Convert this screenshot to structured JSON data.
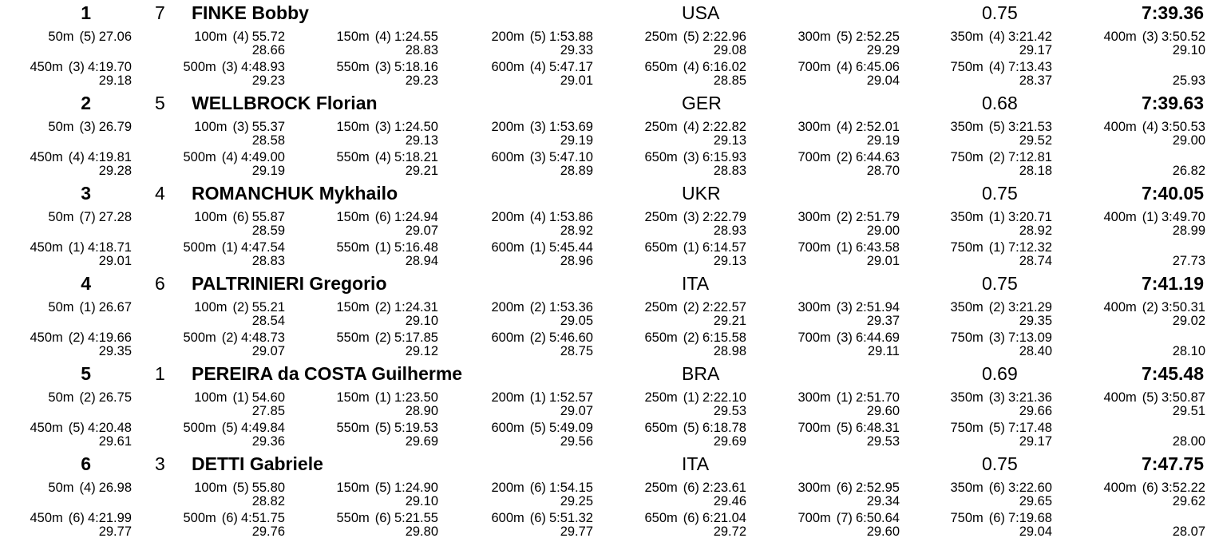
{
  "results": [
    {
      "rank": "1",
      "lane": "7",
      "name": "FINKE Bobby",
      "nat": "USA",
      "reaction": "0.75",
      "final_time": "7:39.36",
      "splits": [
        {
          "dist": "50m",
          "pos": "(5)",
          "cum": "27.06",
          "diff": ""
        },
        {
          "dist": "100m",
          "pos": "(4)",
          "cum": "55.72",
          "diff": "28.66"
        },
        {
          "dist": "150m",
          "pos": "(4)",
          "cum": "1:24.55",
          "diff": "28.83"
        },
        {
          "dist": "200m",
          "pos": "(5)",
          "cum": "1:53.88",
          "diff": "29.33"
        },
        {
          "dist": "250m",
          "pos": "(5)",
          "cum": "2:22.96",
          "diff": "29.08"
        },
        {
          "dist": "300m",
          "pos": "(5)",
          "cum": "2:52.25",
          "diff": "29.29"
        },
        {
          "dist": "350m",
          "pos": "(4)",
          "cum": "3:21.42",
          "diff": "29.17"
        },
        {
          "dist": "400m",
          "pos": "(3)",
          "cum": "3:50.52",
          "diff": "29.10"
        },
        {
          "dist": "450m",
          "pos": "(3)",
          "cum": "4:19.70",
          "diff": "29.18"
        },
        {
          "dist": "500m",
          "pos": "(3)",
          "cum": "4:48.93",
          "diff": "29.23"
        },
        {
          "dist": "550m",
          "pos": "(3)",
          "cum": "5:18.16",
          "diff": "29.23"
        },
        {
          "dist": "600m",
          "pos": "(4)",
          "cum": "5:47.17",
          "diff": "29.01"
        },
        {
          "dist": "650m",
          "pos": "(4)",
          "cum": "6:16.02",
          "diff": "28.85"
        },
        {
          "dist": "700m",
          "pos": "(4)",
          "cum": "6:45.06",
          "diff": "29.04"
        },
        {
          "dist": "750m",
          "pos": "(4)",
          "cum": "7:13.43",
          "diff": "28.37"
        },
        {
          "dist": "",
          "pos": "",
          "cum": "",
          "diff": "25.93"
        }
      ]
    },
    {
      "rank": "2",
      "lane": "5",
      "name": "WELLBROCK Florian",
      "nat": "GER",
      "reaction": "0.68",
      "final_time": "7:39.63",
      "splits": [
        {
          "dist": "50m",
          "pos": "(3)",
          "cum": "26.79",
          "diff": ""
        },
        {
          "dist": "100m",
          "pos": "(3)",
          "cum": "55.37",
          "diff": "28.58"
        },
        {
          "dist": "150m",
          "pos": "(3)",
          "cum": "1:24.50",
          "diff": "29.13"
        },
        {
          "dist": "200m",
          "pos": "(3)",
          "cum": "1:53.69",
          "diff": "29.19"
        },
        {
          "dist": "250m",
          "pos": "(4)",
          "cum": "2:22.82",
          "diff": "29.13"
        },
        {
          "dist": "300m",
          "pos": "(4)",
          "cum": "2:52.01",
          "diff": "29.19"
        },
        {
          "dist": "350m",
          "pos": "(5)",
          "cum": "3:21.53",
          "diff": "29.52"
        },
        {
          "dist": "400m",
          "pos": "(4)",
          "cum": "3:50.53",
          "diff": "29.00"
        },
        {
          "dist": "450m",
          "pos": "(4)",
          "cum": "4:19.81",
          "diff": "29.28"
        },
        {
          "dist": "500m",
          "pos": "(4)",
          "cum": "4:49.00",
          "diff": "29.19"
        },
        {
          "dist": "550m",
          "pos": "(4)",
          "cum": "5:18.21",
          "diff": "29.21"
        },
        {
          "dist": "600m",
          "pos": "(3)",
          "cum": "5:47.10",
          "diff": "28.89"
        },
        {
          "dist": "650m",
          "pos": "(3)",
          "cum": "6:15.93",
          "diff": "28.83"
        },
        {
          "dist": "700m",
          "pos": "(2)",
          "cum": "6:44.63",
          "diff": "28.70"
        },
        {
          "dist": "750m",
          "pos": "(2)",
          "cum": "7:12.81",
          "diff": "28.18"
        },
        {
          "dist": "",
          "pos": "",
          "cum": "",
          "diff": "26.82"
        }
      ]
    },
    {
      "rank": "3",
      "lane": "4",
      "name": "ROMANCHUK Mykhailo",
      "nat": "UKR",
      "reaction": "0.75",
      "final_time": "7:40.05",
      "splits": [
        {
          "dist": "50m",
          "pos": "(7)",
          "cum": "27.28",
          "diff": ""
        },
        {
          "dist": "100m",
          "pos": "(6)",
          "cum": "55.87",
          "diff": "28.59"
        },
        {
          "dist": "150m",
          "pos": "(6)",
          "cum": "1:24.94",
          "diff": "29.07"
        },
        {
          "dist": "200m",
          "pos": "(4)",
          "cum": "1:53.86",
          "diff": "28.92"
        },
        {
          "dist": "250m",
          "pos": "(3)",
          "cum": "2:22.79",
          "diff": "28.93"
        },
        {
          "dist": "300m",
          "pos": "(2)",
          "cum": "2:51.79",
          "diff": "29.00"
        },
        {
          "dist": "350m",
          "pos": "(1)",
          "cum": "3:20.71",
          "diff": "28.92"
        },
        {
          "dist": "400m",
          "pos": "(1)",
          "cum": "3:49.70",
          "diff": "28.99"
        },
        {
          "dist": "450m",
          "pos": "(1)",
          "cum": "4:18.71",
          "diff": "29.01"
        },
        {
          "dist": "500m",
          "pos": "(1)",
          "cum": "4:47.54",
          "diff": "28.83"
        },
        {
          "dist": "550m",
          "pos": "(1)",
          "cum": "5:16.48",
          "diff": "28.94"
        },
        {
          "dist": "600m",
          "pos": "(1)",
          "cum": "5:45.44",
          "diff": "28.96"
        },
        {
          "dist": "650m",
          "pos": "(1)",
          "cum": "6:14.57",
          "diff": "29.13"
        },
        {
          "dist": "700m",
          "pos": "(1)",
          "cum": "6:43.58",
          "diff": "29.01"
        },
        {
          "dist": "750m",
          "pos": "(1)",
          "cum": "7:12.32",
          "diff": "28.74"
        },
        {
          "dist": "",
          "pos": "",
          "cum": "",
          "diff": "27.73"
        }
      ]
    },
    {
      "rank": "4",
      "lane": "6",
      "name": "PALTRINIERI Gregorio",
      "nat": "ITA",
      "reaction": "0.75",
      "final_time": "7:41.19",
      "splits": [
        {
          "dist": "50m",
          "pos": "(1)",
          "cum": "26.67",
          "diff": ""
        },
        {
          "dist": "100m",
          "pos": "(2)",
          "cum": "55.21",
          "diff": "28.54"
        },
        {
          "dist": "150m",
          "pos": "(2)",
          "cum": "1:24.31",
          "diff": "29.10"
        },
        {
          "dist": "200m",
          "pos": "(2)",
          "cum": "1:53.36",
          "diff": "29.05"
        },
        {
          "dist": "250m",
          "pos": "(2)",
          "cum": "2:22.57",
          "diff": "29.21"
        },
        {
          "dist": "300m",
          "pos": "(3)",
          "cum": "2:51.94",
          "diff": "29.37"
        },
        {
          "dist": "350m",
          "pos": "(2)",
          "cum": "3:21.29",
          "diff": "29.35"
        },
        {
          "dist": "400m",
          "pos": "(2)",
          "cum": "3:50.31",
          "diff": "29.02"
        },
        {
          "dist": "450m",
          "pos": "(2)",
          "cum": "4:19.66",
          "diff": "29.35"
        },
        {
          "dist": "500m",
          "pos": "(2)",
          "cum": "4:48.73",
          "diff": "29.07"
        },
        {
          "dist": "550m",
          "pos": "(2)",
          "cum": "5:17.85",
          "diff": "29.12"
        },
        {
          "dist": "600m",
          "pos": "(2)",
          "cum": "5:46.60",
          "diff": "28.75"
        },
        {
          "dist": "650m",
          "pos": "(2)",
          "cum": "6:15.58",
          "diff": "28.98"
        },
        {
          "dist": "700m",
          "pos": "(3)",
          "cum": "6:44.69",
          "diff": "29.11"
        },
        {
          "dist": "750m",
          "pos": "(3)",
          "cum": "7:13.09",
          "diff": "28.40"
        },
        {
          "dist": "",
          "pos": "",
          "cum": "",
          "diff": "28.10"
        }
      ]
    },
    {
      "rank": "5",
      "lane": "1",
      "name": "PEREIRA da COSTA Guilherme",
      "nat": "BRA",
      "reaction": "0.69",
      "final_time": "7:45.48",
      "splits": [
        {
          "dist": "50m",
          "pos": "(2)",
          "cum": "26.75",
          "diff": ""
        },
        {
          "dist": "100m",
          "pos": "(1)",
          "cum": "54.60",
          "diff": "27.85"
        },
        {
          "dist": "150m",
          "pos": "(1)",
          "cum": "1:23.50",
          "diff": "28.90"
        },
        {
          "dist": "200m",
          "pos": "(1)",
          "cum": "1:52.57",
          "diff": "29.07"
        },
        {
          "dist": "250m",
          "pos": "(1)",
          "cum": "2:22.10",
          "diff": "29.53"
        },
        {
          "dist": "300m",
          "pos": "(1)",
          "cum": "2:51.70",
          "diff": "29.60"
        },
        {
          "dist": "350m",
          "pos": "(3)",
          "cum": "3:21.36",
          "diff": "29.66"
        },
        {
          "dist": "400m",
          "pos": "(5)",
          "cum": "3:50.87",
          "diff": "29.51"
        },
        {
          "dist": "450m",
          "pos": "(5)",
          "cum": "4:20.48",
          "diff": "29.61"
        },
        {
          "dist": "500m",
          "pos": "(5)",
          "cum": "4:49.84",
          "diff": "29.36"
        },
        {
          "dist": "550m",
          "pos": "(5)",
          "cum": "5:19.53",
          "diff": "29.69"
        },
        {
          "dist": "600m",
          "pos": "(5)",
          "cum": "5:49.09",
          "diff": "29.56"
        },
        {
          "dist": "650m",
          "pos": "(5)",
          "cum": "6:18.78",
          "diff": "29.69"
        },
        {
          "dist": "700m",
          "pos": "(5)",
          "cum": "6:48.31",
          "diff": "29.53"
        },
        {
          "dist": "750m",
          "pos": "(5)",
          "cum": "7:17.48",
          "diff": "29.17"
        },
        {
          "dist": "",
          "pos": "",
          "cum": "",
          "diff": "28.00"
        }
      ]
    },
    {
      "rank": "6",
      "lane": "3",
      "name": "DETTI Gabriele",
      "nat": "ITA",
      "reaction": "0.75",
      "final_time": "7:47.75",
      "splits": [
        {
          "dist": "50m",
          "pos": "(4)",
          "cum": "26.98",
          "diff": ""
        },
        {
          "dist": "100m",
          "pos": "(5)",
          "cum": "55.80",
          "diff": "28.82"
        },
        {
          "dist": "150m",
          "pos": "(5)",
          "cum": "1:24.90",
          "diff": "29.10"
        },
        {
          "dist": "200m",
          "pos": "(6)",
          "cum": "1:54.15",
          "diff": "29.25"
        },
        {
          "dist": "250m",
          "pos": "(6)",
          "cum": "2:23.61",
          "diff": "29.46"
        },
        {
          "dist": "300m",
          "pos": "(6)",
          "cum": "2:52.95",
          "diff": "29.34"
        },
        {
          "dist": "350m",
          "pos": "(6)",
          "cum": "3:22.60",
          "diff": "29.65"
        },
        {
          "dist": "400m",
          "pos": "(6)",
          "cum": "3:52.22",
          "diff": "29.62"
        },
        {
          "dist": "450m",
          "pos": "(6)",
          "cum": "4:21.99",
          "diff": "29.77"
        },
        {
          "dist": "500m",
          "pos": "(6)",
          "cum": "4:51.75",
          "diff": "29.76"
        },
        {
          "dist": "550m",
          "pos": "(6)",
          "cum": "5:21.55",
          "diff": "29.80"
        },
        {
          "dist": "600m",
          "pos": "(6)",
          "cum": "5:51.32",
          "diff": "29.77"
        },
        {
          "dist": "650m",
          "pos": "(6)",
          "cum": "6:21.04",
          "diff": "29.72"
        },
        {
          "dist": "700m",
          "pos": "(7)",
          "cum": "6:50.64",
          "diff": "29.60"
        },
        {
          "dist": "750m",
          "pos": "(6)",
          "cum": "7:19.68",
          "diff": "29.04"
        },
        {
          "dist": "",
          "pos": "",
          "cum": "",
          "diff": "28.07"
        }
      ]
    }
  ]
}
